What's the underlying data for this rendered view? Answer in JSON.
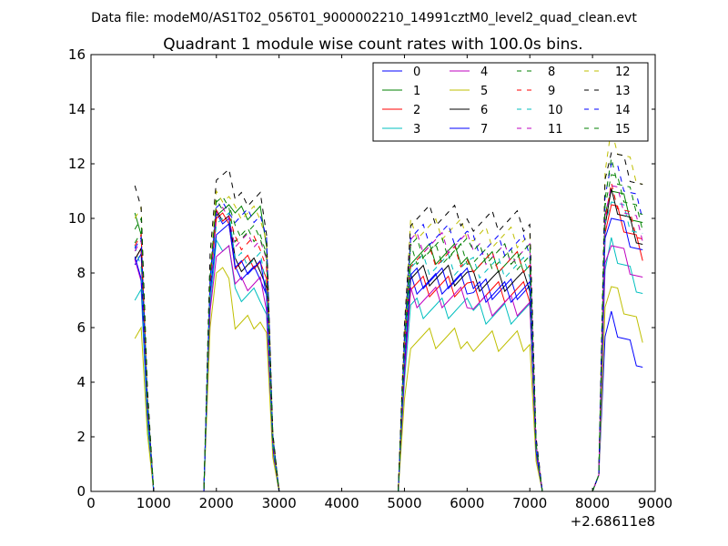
{
  "figure": {
    "suptitle": "Data file: modeM0/AS1T02_056T01_9000002210_14991cztM0_level2_quad_clean.evt",
    "x_offset_label": "+2.68611e8"
  },
  "chart_data": {
    "type": "line",
    "title": "Quadrant 1 module wise count rates with 100.0s bins.",
    "xlabel": "",
    "ylabel": "",
    "xlim": [
      0,
      9000
    ],
    "ylim": [
      0,
      16
    ],
    "x_offset": 268611000,
    "xticks": [
      0,
      1000,
      2000,
      3000,
      4000,
      5000,
      6000,
      7000,
      8000,
      9000
    ],
    "yticks": [
      0,
      2,
      4,
      6,
      8,
      10,
      12,
      14,
      16
    ],
    "grid": false,
    "legend_position": "upper-right",
    "legend_columns": 4,
    "x": [
      700,
      800,
      900,
      1000,
      1100,
      1200,
      1300,
      1400,
      1500,
      1600,
      1700,
      1800,
      1900,
      2000,
      2100,
      2200,
      2300,
      2400,
      2500,
      2600,
      2700,
      2800,
      2900,
      3000,
      3100,
      3200,
      3300,
      3400,
      3500,
      3600,
      3700,
      3800,
      3900,
      4000,
      4100,
      4200,
      4300,
      4400,
      4500,
      4600,
      4700,
      4800,
      4900,
      5000,
      5100,
      5200,
      5300,
      5400,
      5500,
      5600,
      5700,
      5800,
      5900,
      6000,
      6100,
      6200,
      6300,
      6400,
      6500,
      6600,
      6700,
      6800,
      6900,
      7000,
      7100,
      7200,
      7300,
      7400,
      7500,
      7600,
      7700,
      7800,
      7900,
      8000,
      8100,
      8200,
      8300,
      8400,
      8500,
      8600,
      8700,
      8800
    ],
    "series": [
      {
        "name": "0",
        "color": "#0000ff",
        "dash": "solid",
        "levels": [
          8.3,
          10.0,
          8.0,
          7.6,
          7.4,
          6.3
        ]
      },
      {
        "name": "1",
        "color": "#008000",
        "dash": "solid",
        "levels": [
          9.8,
          10.3,
          10.2,
          8.7,
          8.4,
          11.3
        ]
      },
      {
        "name": "2",
        "color": "#ff0000",
        "dash": "solid",
        "levels": [
          8.9,
          10.0,
          8.4,
          7.5,
          7.3,
          10.5
        ]
      },
      {
        "name": "3",
        "color": "#00bfbf",
        "dash": "solid",
        "levels": [
          7.0,
          9.0,
          7.2,
          6.7,
          6.5,
          9.0
        ]
      },
      {
        "name": "4",
        "color": "#bf00bf",
        "dash": "solid",
        "levels": [
          8.1,
          8.8,
          7.6,
          7.1,
          6.8,
          9.3
        ]
      },
      {
        "name": "5",
        "color": "#bfbf00",
        "dash": "solid",
        "levels": [
          6.0,
          8.0,
          6.2,
          5.6,
          5.5,
          7.5
        ]
      },
      {
        "name": "6",
        "color": "#000000",
        "dash": "solid",
        "levels": [
          8.5,
          10.1,
          8.3,
          7.9,
          7.7,
          10.8
        ]
      },
      {
        "name": "7",
        "color": "#0000ff",
        "dash": "solid",
        "levels": [
          8.2,
          9.6,
          8.2,
          7.8,
          7.3,
          10.3
        ]
      },
      {
        "name": "8",
        "color": "#008000",
        "dash": "dashed",
        "levels": [
          9.5,
          10.6,
          9.4,
          8.7,
          8.5,
          11.6
        ]
      },
      {
        "name": "9",
        "color": "#ff0000",
        "dash": "dashed",
        "levels": [
          9.0,
          10.1,
          9.1,
          8.6,
          8.4,
          11.0
        ]
      },
      {
        "name": "10",
        "color": "#00bfbf",
        "dash": "dashed",
        "levels": [
          8.6,
          10.0,
          8.5,
          8.3,
          8.2,
          10.9
        ]
      },
      {
        "name": "11",
        "color": "#bf00bf",
        "dash": "dashed",
        "levels": [
          9.2,
          10.2,
          9.2,
          9.1,
          8.7,
          11.2
        ]
      },
      {
        "name": "12",
        "color": "#bfbf00",
        "dash": "dashed",
        "levels": [
          10.0,
          10.8,
          10.2,
          9.6,
          9.3,
          13.0
        ]
      },
      {
        "name": "13",
        "color": "#000000",
        "dash": "dashed",
        "levels": [
          10.8,
          11.6,
          10.7,
          10.1,
          9.9,
          12.7
        ]
      },
      {
        "name": "14",
        "color": "#0000ff",
        "dash": "dashed",
        "levels": [
          9.3,
          10.4,
          10.1,
          9.4,
          9.0,
          12.0
        ]
      },
      {
        "name": "15",
        "color": "#008000",
        "dash": "dashed",
        "levels": [
          9.6,
          10.5,
          9.5,
          8.9,
          8.7,
          11.9
        ]
      }
    ]
  }
}
